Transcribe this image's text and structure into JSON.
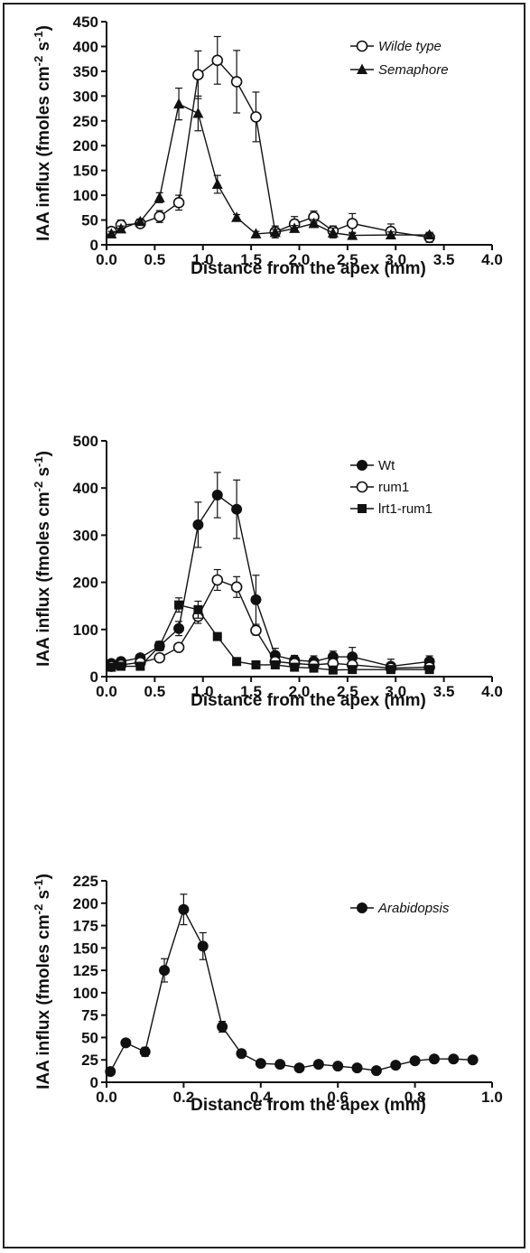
{
  "chart_data": [
    {
      "type": "line",
      "xlabel": "Distance from the apex (mm)",
      "ylabel": "IAA influx (fmoles cm-2 s-1)",
      "xlim": [
        0.0,
        4.0
      ],
      "ylim": [
        0,
        450
      ],
      "xticks": [
        0.0,
        0.5,
        1.0,
        1.5,
        2.0,
        2.5,
        3.0,
        3.5,
        4.0
      ],
      "yticks": [
        0,
        50,
        100,
        150,
        200,
        250,
        300,
        350,
        400,
        450
      ],
      "xtick_labels": [
        "0.0",
        "0.5",
        "1.0",
        "1.5",
        "2.0",
        "2.5",
        "3.0",
        "3.5",
        "4.0"
      ],
      "ytick_labels": [
        "0",
        "50",
        "100",
        "150",
        "200",
        "250",
        "300",
        "350",
        "400",
        "450"
      ],
      "legend_position": "top-right",
      "series": [
        {
          "name": "Wilde type",
          "marker": "open-circle",
          "italic": true,
          "x": [
            0.05,
            0.15,
            0.35,
            0.55,
            0.75,
            0.95,
            1.15,
            1.35,
            1.55,
            1.75,
            1.95,
            2.15,
            2.35,
            2.55,
            2.95,
            3.35
          ],
          "y": [
            27,
            40,
            43,
            57,
            85,
            343,
            372,
            329,
            258,
            26,
            42,
            56,
            28,
            43,
            27,
            15
          ],
          "err": [
            8,
            10,
            5,
            12,
            15,
            48,
            48,
            63,
            50,
            12,
            15,
            12,
            10,
            20,
            15,
            10
          ]
        },
        {
          "name": "Semaphore",
          "marker": "filled-triangle",
          "italic": true,
          "x": [
            0.05,
            0.15,
            0.35,
            0.55,
            0.75,
            0.95,
            1.15,
            1.35,
            1.55,
            1.75,
            1.95,
            2.15,
            2.35,
            2.55,
            2.95,
            3.35
          ],
          "y": [
            22,
            32,
            47,
            95,
            284,
            265,
            122,
            55,
            22,
            25,
            33,
            43,
            24,
            19,
            20,
            20
          ],
          "err": [
            5,
            6,
            5,
            10,
            32,
            35,
            18,
            6,
            5,
            6,
            6,
            8,
            10,
            6,
            6,
            5
          ]
        }
      ]
    },
    {
      "type": "line",
      "xlabel": "Distance from the apex (mm)",
      "ylabel": "IAA influx (fmoles cm-2 s-1)",
      "xlim": [
        0.0,
        4.0
      ],
      "ylim": [
        0,
        500
      ],
      "xticks": [
        0.0,
        0.5,
        1.0,
        1.5,
        2.0,
        2.5,
        3.0,
        3.5,
        4.0
      ],
      "yticks": [
        0,
        100,
        200,
        300,
        400,
        500
      ],
      "xtick_labels": [
        "0.0",
        "0.5",
        "1.0",
        "1.5",
        "2.0",
        "2.5",
        "3.0",
        "3.5",
        "4.0"
      ],
      "ytick_labels": [
        "0",
        "100",
        "200",
        "300",
        "400",
        "500"
      ],
      "legend_position": "top-right",
      "series": [
        {
          "name": "Wt",
          "marker": "filled-circle",
          "italic": false,
          "x": [
            0.05,
            0.15,
            0.35,
            0.55,
            0.75,
            0.95,
            1.15,
            1.35,
            1.55,
            1.75,
            1.95,
            2.15,
            2.35,
            2.55,
            2.95,
            3.35
          ],
          "y": [
            28,
            32,
            40,
            65,
            102,
            322,
            385,
            355,
            163,
            45,
            35,
            32,
            42,
            42,
            22,
            32
          ],
          "err": [
            6,
            8,
            5,
            10,
            15,
            48,
            48,
            62,
            52,
            15,
            10,
            12,
            12,
            20,
            15,
            12
          ]
        },
        {
          "name": "rum1",
          "marker": "open-circle",
          "italic": false,
          "x": [
            0.05,
            0.15,
            0.35,
            0.55,
            0.75,
            0.95,
            1.15,
            1.35,
            1.55,
            1.75,
            1.95,
            2.15,
            2.35,
            2.55,
            2.95,
            3.35
          ],
          "y": [
            22,
            25,
            30,
            40,
            62,
            128,
            205,
            190,
            98,
            32,
            28,
            25,
            28,
            25,
            18,
            20
          ],
          "err": [
            5,
            5,
            5,
            6,
            8,
            15,
            22,
            22,
            10,
            8,
            6,
            6,
            8,
            6,
            5,
            5
          ]
        },
        {
          "name": "lrt1-rum1",
          "marker": "filled-square",
          "italic": false,
          "x": [
            0.05,
            0.15,
            0.35,
            0.55,
            0.75,
            0.95,
            1.15,
            1.35,
            1.55,
            1.75,
            1.95,
            2.15,
            2.35,
            2.55,
            2.95,
            3.35
          ],
          "y": [
            20,
            22,
            22,
            65,
            152,
            142,
            85,
            32,
            25,
            25,
            20,
            18,
            14,
            15,
            15,
            15
          ],
          "err": [
            4,
            5,
            5,
            8,
            15,
            18,
            5,
            4,
            4,
            4,
            4,
            4,
            4,
            4,
            4,
            4
          ]
        }
      ]
    },
    {
      "type": "line",
      "xlabel": "Distance from the apex (mm)",
      "ylabel": "IAA influx (fmoles cm-2 s-1)",
      "xlim": [
        0.0,
        1.0
      ],
      "ylim": [
        0,
        225
      ],
      "xticks": [
        0.0,
        0.2,
        0.4,
        0.6,
        0.8,
        1.0
      ],
      "yticks": [
        0,
        25,
        50,
        75,
        100,
        125,
        150,
        175,
        200,
        225
      ],
      "xtick_labels": [
        "0.0",
        "0.2",
        "0.4",
        "0.6",
        "0.8",
        "1.0"
      ],
      "ytick_labels": [
        "0",
        "25",
        "50",
        "75",
        "100",
        "125",
        "150",
        "175",
        "200",
        "225"
      ],
      "legend_position": "top-right",
      "series": [
        {
          "name": "Arabidopsis",
          "marker": "filled-circle",
          "italic": true,
          "x": [
            0.01,
            0.05,
            0.1,
            0.15,
            0.2,
            0.25,
            0.3,
            0.35,
            0.4,
            0.45,
            0.5,
            0.55,
            0.6,
            0.65,
            0.7,
            0.75,
            0.8,
            0.85,
            0.9,
            0.95
          ],
          "y": [
            12,
            44,
            34,
            125,
            193,
            152,
            62,
            32,
            21,
            20,
            16,
            20,
            18,
            16,
            13,
            19,
            24,
            26,
            26,
            25
          ],
          "err": [
            2,
            4,
            5,
            13,
            17,
            15,
            6,
            4,
            2,
            2,
            2,
            2,
            2,
            2,
            2,
            2,
            2,
            2,
            2,
            2
          ]
        }
      ]
    }
  ]
}
